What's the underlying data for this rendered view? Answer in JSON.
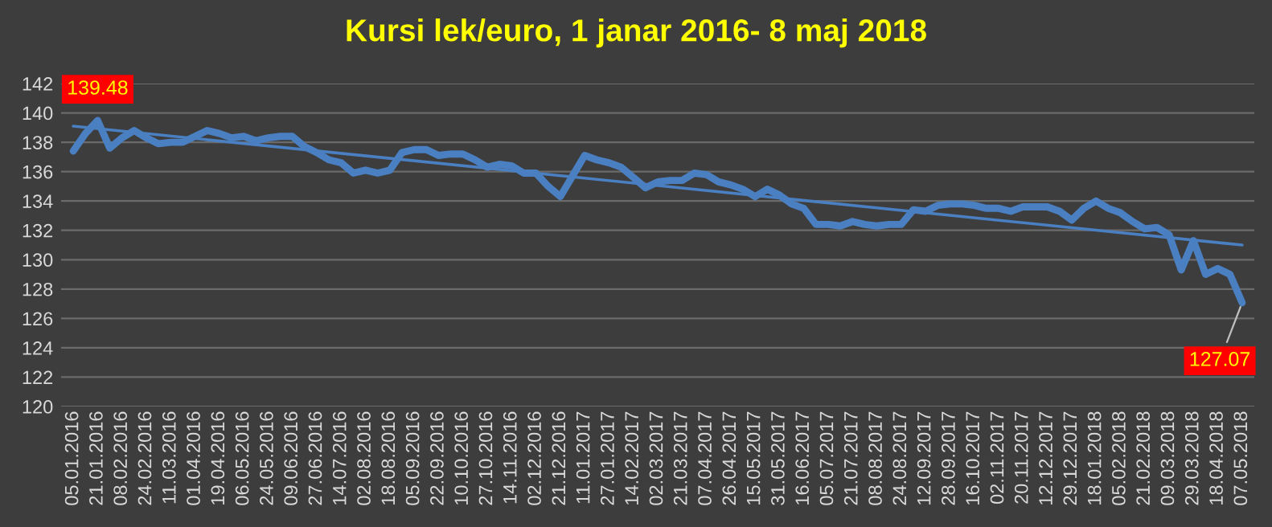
{
  "chart_data": {
    "type": "line",
    "title": "Kursi lek/euro, 1 janar 2016- 8 maj 2018",
    "categories": [
      "05.01.2016",
      null,
      "21.01.2016",
      null,
      "08.02.2016",
      null,
      "24.02.2016",
      null,
      "11.03.2016",
      null,
      "01.04.2016",
      null,
      "19.04.2016",
      null,
      "06.05.2016",
      null,
      "24.05.2016",
      null,
      "09.06.2016",
      null,
      "27.06.2016",
      null,
      "14.07.2016",
      null,
      "02.08.2016",
      null,
      "18.08.2016",
      null,
      "05.09.2016",
      null,
      "22.09.2016",
      null,
      "10.10.2016",
      null,
      "27.10.2016",
      null,
      "14.11.2016",
      null,
      "02.12.2016",
      null,
      "21.12.2016",
      null,
      "11.01.2017",
      null,
      "27.01.2017",
      null,
      "14.02.2017",
      null,
      "02.03.2017",
      null,
      "21.03.2017",
      null,
      "07.04.2017",
      null,
      "26.04.2017",
      null,
      "15.05.2017",
      null,
      "31.05.2017",
      null,
      "16.06.2017",
      null,
      "05.07.2017",
      null,
      "21.07.2017",
      null,
      "08.08.2017",
      null,
      "24.08.2017",
      null,
      "12.09.2017",
      null,
      "28.09.2017",
      null,
      "16.10.2017",
      null,
      "02.11.2017",
      null,
      "20.11.2017",
      null,
      "12.12.2017",
      null,
      "29.12.2017",
      null,
      "18.01.2018",
      null,
      "05.02.2018",
      null,
      "21.02.2018",
      null,
      "09.03.2018",
      null,
      "29.03.2018",
      null,
      "18.04.2018",
      null,
      "07.05.2018"
    ],
    "series": [
      {
        "color": "#4a7fc1",
        "values": [
          137.4,
          138.6,
          139.48,
          137.6,
          138.3,
          138.8,
          138.3,
          137.9,
          138.0,
          138.0,
          138.4,
          138.8,
          138.6,
          138.3,
          138.4,
          138.1,
          138.3,
          138.4,
          138.4,
          137.7,
          137.3,
          136.8,
          136.6,
          135.9,
          136.1,
          135.9,
          136.1,
          137.3,
          137.5,
          137.5,
          137.1,
          137.2,
          137.2,
          136.8,
          136.3,
          136.5,
          136.4,
          135.9,
          135.9,
          135.0,
          134.3,
          135.7,
          137.1,
          136.8,
          136.6,
          136.3,
          135.6,
          134.9,
          135.3,
          135.4,
          135.4,
          135.9,
          135.8,
          135.3,
          135.1,
          134.8,
          134.3,
          134.8,
          134.4,
          133.8,
          133.5,
          132.4,
          132.4,
          132.3,
          132.6,
          132.4,
          132.3,
          132.4,
          132.4,
          133.4,
          133.3,
          133.7,
          133.8,
          133.8,
          133.7,
          133.5,
          133.5,
          133.3,
          133.6,
          133.6,
          133.6,
          133.3,
          132.7,
          133.5,
          134.0,
          133.5,
          133.2,
          132.6,
          132.1,
          132.2,
          131.7,
          129.3,
          131.3,
          129.0,
          129.4,
          129.0,
          127.07
        ],
        "value_labels": [
          null,
          null,
          "139.48",
          null,
          null,
          null,
          null,
          null,
          null,
          null,
          null,
          null,
          null,
          null,
          null,
          null,
          null,
          null,
          null,
          null,
          null,
          null,
          null,
          null,
          null,
          null,
          null,
          null,
          null,
          null,
          null,
          null,
          null,
          null,
          null,
          null,
          null,
          null,
          null,
          null,
          null,
          null,
          null,
          null,
          null,
          null,
          null,
          null,
          null,
          null,
          null,
          null,
          null,
          null,
          null,
          null,
          null,
          null,
          null,
          null,
          null,
          null,
          null,
          null,
          null,
          null,
          null,
          null,
          null,
          null,
          null,
          null,
          null,
          null,
          null,
          null,
          null,
          null,
          null,
          null,
          null,
          null,
          null,
          null,
          null,
          null,
          null,
          null,
          null,
          null,
          null,
          null,
          null,
          null,
          null,
          null,
          "127.07"
        ]
      },
      {
        "type": "line",
        "color": "#4a7fc1",
        "x": [
          "05.01.2016",
          "07.05.2018"
        ],
        "values": [
          139.1,
          131.0
        ]
      }
    ],
    "ylim": [
      120,
      142
    ],
    "yticks": [
      120,
      122,
      124,
      126,
      128,
      130,
      132,
      134,
      136,
      138,
      140,
      142
    ],
    "grid": "y",
    "legend": false
  }
}
